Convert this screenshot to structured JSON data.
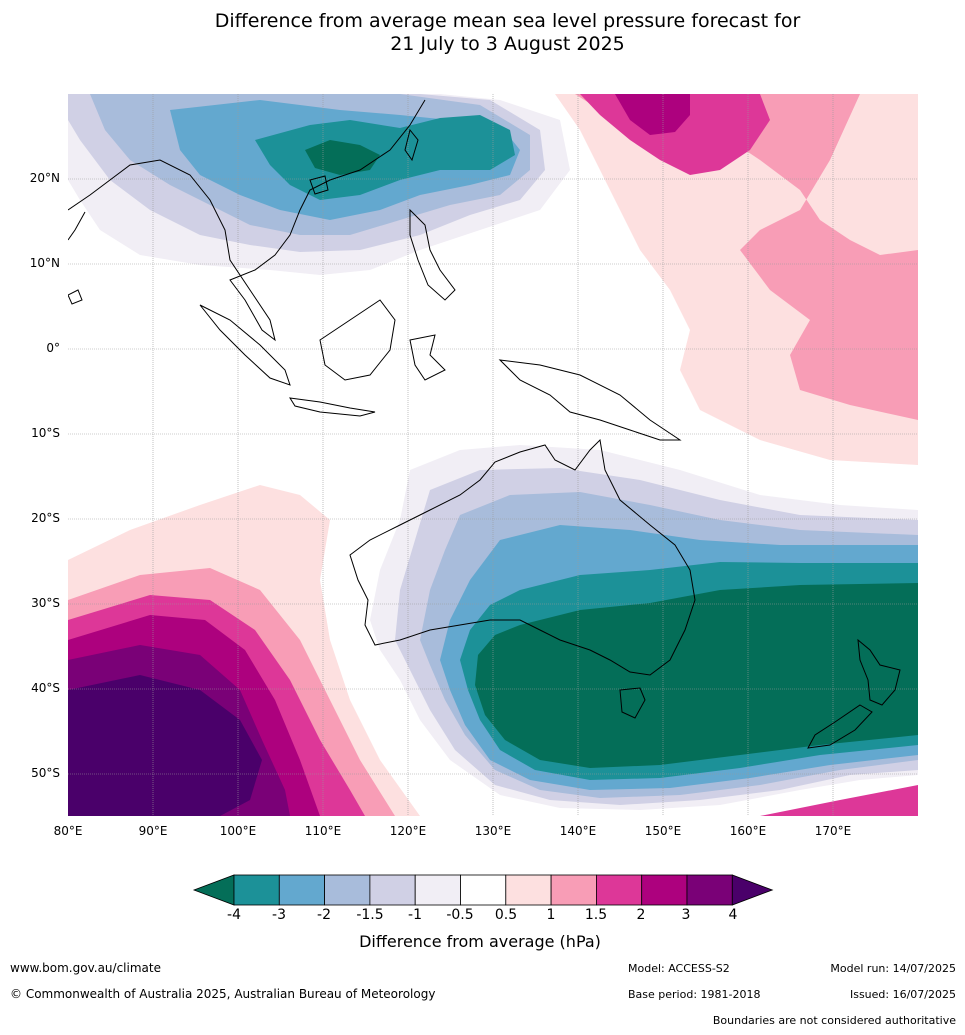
{
  "title_line1": "Difference from average mean sea level pressure forecast for",
  "title_line2": "21 July to 3 August 2025",
  "map": {
    "lat_ticks": [
      "20°N",
      "10°N",
      "0°",
      "10°S",
      "20°S",
      "30°S",
      "40°S",
      "50°S"
    ],
    "lon_ticks": [
      "80°E",
      "90°E",
      "100°E",
      "110°E",
      "120°E",
      "130°E",
      "140°E",
      "150°E",
      "160°E",
      "170°E"
    ]
  },
  "colorbar": {
    "title": "Difference from average (hPa)",
    "tick_labels": [
      "-4",
      "-3",
      "-2",
      "-1.5",
      "-1",
      "-0.5",
      "0.5",
      "1",
      "1.5",
      "2",
      "3",
      "4"
    ],
    "colors": [
      "#046e58",
      "#1c9198",
      "#63a8cf",
      "#a8bcdb",
      "#d0d0e5",
      "#f1eef5",
      "#ffffff",
      "#fde0e0",
      "#f89db6",
      "#dd3798",
      "#ad017e",
      "#7a0177",
      "#4a006a"
    ]
  },
  "footer": {
    "website": "www.bom.gov.au/climate",
    "copyright": "© Commonwealth of Australia 2025, Australian Bureau of Meteorology",
    "model": "Model: ACCESS-S2",
    "base_period": "Base period: 1981-2018",
    "model_run": "Model run: 14/07/2025",
    "issued": "Issued: 16/07/2025",
    "boundaries_note": "Boundaries are not considered authoritative"
  }
}
